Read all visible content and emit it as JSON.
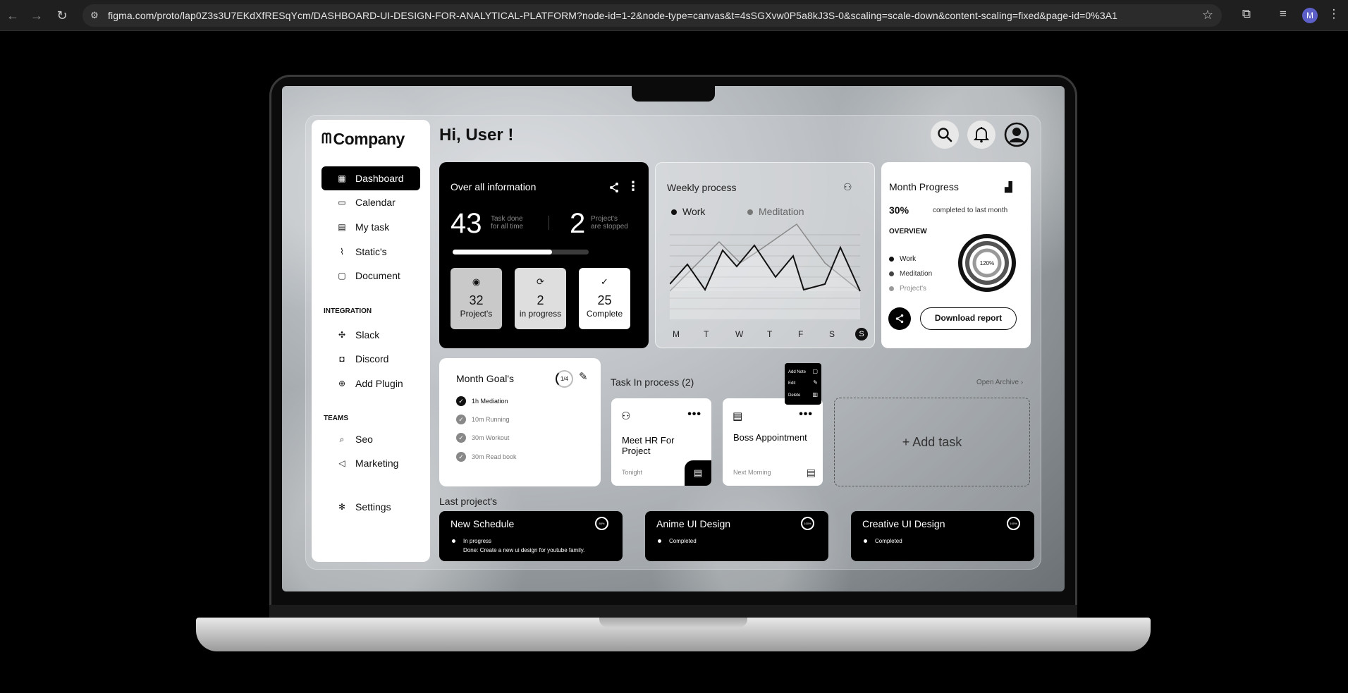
{
  "browser": {
    "url": "figma.com/proto/lap0Z3s3U7EKdXfRESqYcm/DASHBOARD-UI-DESIGN-FOR-ANALYTICAL-PLATFORM?node-id=1-2&node-type=canvas&t=4sSGXvw0P5a8kJ3S-0&scaling=scale-down&content-scaling=fixed&page-id=0%3A1",
    "profile_initial": "M"
  },
  "sidebar": {
    "logo": "Company",
    "nav": [
      {
        "label": "Dashboard",
        "icon": "grid-icon",
        "active": true
      },
      {
        "label": "Calendar",
        "icon": "calendar-icon"
      },
      {
        "label": "My task",
        "icon": "clipboard-icon"
      },
      {
        "label": "Static's",
        "icon": "chart-icon"
      },
      {
        "label": "Document",
        "icon": "document-icon"
      }
    ],
    "integration_title": "INTEGRATION",
    "integration": [
      {
        "label": "Slack",
        "icon": "slack-icon"
      },
      {
        "label": "Discord",
        "icon": "discord-icon"
      },
      {
        "label": "Add Plugin",
        "icon": "plus-circle-icon"
      }
    ],
    "teams_title": "TEAMS",
    "teams": [
      {
        "label": "Seo",
        "icon": "search-chat-icon"
      },
      {
        "label": "Marketing",
        "icon": "megaphone-icon"
      }
    ],
    "settings": "Settings"
  },
  "header": {
    "greeting": "Hi, User !"
  },
  "overall": {
    "title": "Over all information",
    "tasks_done": "43",
    "tasks_done_label_1": "Task done",
    "tasks_done_label_2": "for all time",
    "projects_stopped": "2",
    "projects_stopped_label_1": "Project's",
    "projects_stopped_label_2": "are stopped",
    "progress": 0.73,
    "stats": [
      {
        "value": "32",
        "label": "Project's"
      },
      {
        "value": "2",
        "label": "in progress"
      },
      {
        "value": "25",
        "label": "Complete"
      }
    ]
  },
  "weekly": {
    "title": "Weekly process",
    "legend": [
      "Work",
      "Meditation"
    ],
    "days": [
      "M",
      "T",
      "W",
      "T",
      "F",
      "S",
      "S"
    ]
  },
  "month_progress": {
    "title": "Month Progress",
    "percent": "30%",
    "percent_note": "completed to last month",
    "overview": "OVERVIEW",
    "legend": [
      "Work",
      "Meditation",
      "Project's"
    ],
    "ring_label": "120%",
    "download": "Download report"
  },
  "goals": {
    "title": "Month Goal's",
    "counter": "1/4",
    "items": [
      {
        "label": "1h Mediation",
        "done": true
      },
      {
        "label": "10m Running",
        "done": false
      },
      {
        "label": "30m Workout",
        "done": false
      },
      {
        "label": "30m Read book",
        "done": false
      }
    ]
  },
  "tasks": {
    "title": "Task In process (2)",
    "open_archive": "Open Archive",
    "cards": [
      {
        "name": "Meet HR For Project",
        "when": "Tonight"
      },
      {
        "name": "Boss Appointment",
        "when": "Next Morning"
      }
    ],
    "context_menu": [
      "Add Note",
      "Edit",
      "Delete"
    ],
    "add_task": "+ Add task"
  },
  "last_projects": {
    "title": "Last project's",
    "items": [
      {
        "name": "New Schedule",
        "ring": "80%",
        "status": "In progress",
        "detail": "Done: Create a new ui design for youtube family."
      },
      {
        "name": "Anime UI Design",
        "ring": "100%",
        "status": "Completed"
      },
      {
        "name": "Creative UI Design",
        "ring": "100%",
        "status": "Completed"
      }
    ]
  }
}
